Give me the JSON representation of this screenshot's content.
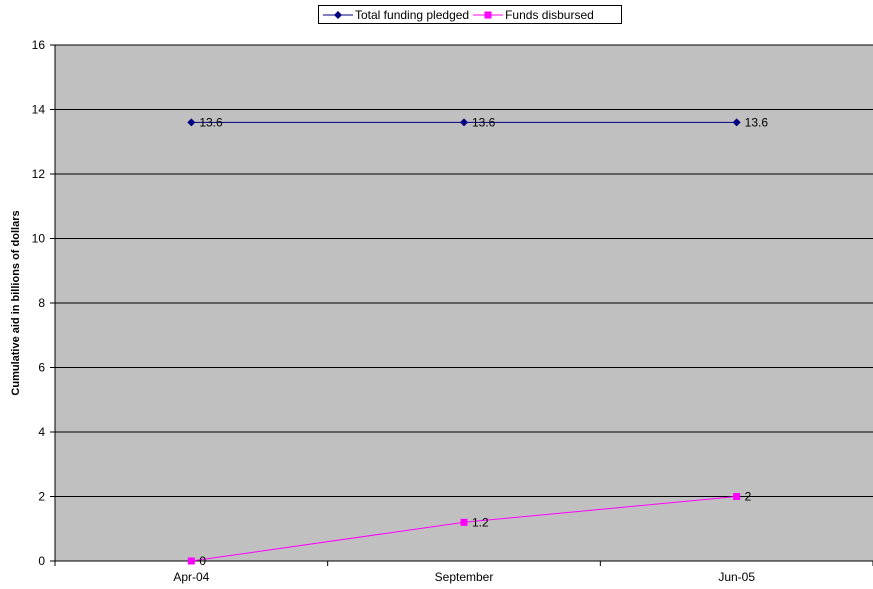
{
  "chart_data": {
    "type": "line",
    "title": "",
    "xlabel": "",
    "ylabel": "Cumulative aid in billions of dollars",
    "categories": [
      "Apr-04",
      "September",
      "Jun-05"
    ],
    "series": [
      {
        "name": "Total funding pledged",
        "values": [
          13.6,
          13.6,
          13.6
        ],
        "color": "#000080",
        "marker": "diamond",
        "labels": [
          "13.6",
          "13.6",
          "13.6"
        ]
      },
      {
        "name": "Funds disbursed",
        "values": [
          0,
          1.2,
          2
        ],
        "color": "#ff00ff",
        "marker": "square",
        "labels": [
          "0",
          "1.2",
          "2"
        ]
      }
    ],
    "ylim": [
      0,
      16
    ],
    "yticks": [
      "0",
      "2",
      "4",
      "6",
      "8",
      "10",
      "12",
      "14",
      "16"
    ],
    "grid": true,
    "legend_position": "top",
    "plot_background": "#c0c0c0",
    "gridline_color": "#000000"
  }
}
